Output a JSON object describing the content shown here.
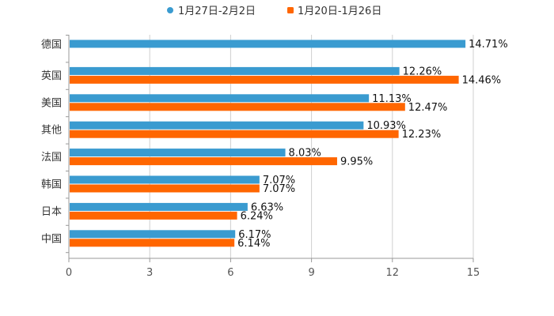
{
  "chart_data": {
    "type": "bar",
    "orientation": "horizontal",
    "categories": [
      "德国",
      "英国",
      "美国",
      "其他",
      "法国",
      "韩国",
      "日本",
      "中国"
    ],
    "series": [
      {
        "name": "1月27日-2月2日",
        "color": "#3a9bd0",
        "values": [
          14.71,
          12.26,
          11.13,
          10.93,
          8.03,
          7.07,
          6.63,
          6.17
        ],
        "labels": [
          "14.71%",
          "12.26%",
          "11.13%",
          "10.93%",
          "8.03%",
          "7.07%",
          "6.63%",
          "6.17%"
        ]
      },
      {
        "name": "1月20日-1月26日",
        "color": "#ff6600",
        "values": [
          null,
          14.46,
          12.47,
          12.23,
          9.95,
          7.07,
          6.24,
          6.14
        ],
        "labels": [
          "",
          "14.46%",
          "12.47%",
          "12.23%",
          "9.95%",
          "7.07%",
          "6.24%",
          "6.14%"
        ]
      }
    ],
    "xlim": [
      0,
      15
    ],
    "ticks": [
      0,
      3,
      6,
      9,
      12,
      15
    ],
    "tick_labels": [
      "0",
      "3",
      "6",
      "9",
      "12",
      "15"
    ],
    "grid": true,
    "legend_position": "top-center"
  }
}
